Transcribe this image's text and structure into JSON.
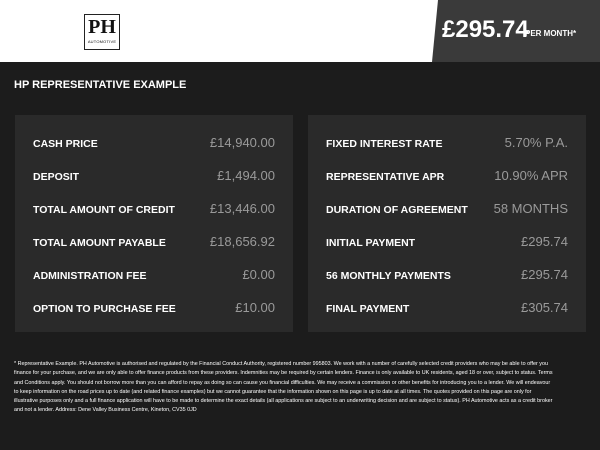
{
  "header": {
    "logo_mark": "PH",
    "logo_text": "AUTOMOTIVE",
    "price": "£295.74",
    "price_suffix": "PER MONTH*"
  },
  "section_title": "HP REPRESENTATIVE EXAMPLE",
  "left_table": {
    "rows": [
      [
        "CASH PRICE",
        "£14,940.00"
      ],
      [
        "DEPOSIT",
        "£1,494.00"
      ],
      [
        "TOTAL AMOUNT OF CREDIT",
        "£13,446.00"
      ],
      [
        "TOTAL AMOUNT PAYABLE",
        "£18,656.92"
      ],
      [
        "ADMINISTRATION FEE",
        "£0.00"
      ],
      [
        "OPTION TO PURCHASE FEE",
        "£10.00"
      ]
    ]
  },
  "right_table": {
    "rows": [
      [
        "FIXED INTEREST RATE",
        "5.70% P.A."
      ],
      [
        "REPRESENTATIVE APR",
        "10.90% APR"
      ],
      [
        "DURATION OF AGREEMENT",
        "58 MONTHS"
      ],
      [
        "INITIAL PAYMENT",
        "£295.74"
      ],
      [
        "56 MONTHLY PAYMENTS",
        "£295.74"
      ],
      [
        "FINAL PAYMENT",
        "£305.74"
      ]
    ]
  },
  "footnote": "* Representative Example. PH Automotive is authorised and regulated by the Financial Conduct Authority, registered number 995803. We work with a number of carefully selected credit providers who may be able to offer you finance for your purchase, and we are only able to offer finance products from these providers. Indemnities may be required by certain lenders. Finance is only available to UK residents, aged 18 or over, subject to status. Terms and Conditions apply. You should not borrow more than you can afford to repay as doing so can cause you financial difficulties. We may receive a commission or other benefits for introducing you to a lender. We will endeavour to keep information on the road prices up to date (and related finance examples) but we cannot guarantee that the information shown on this page is up to date at all times. The quotes provided on this page are only for illustrative purposes only and a full finance application will have to be made to determine the exact details (all applications are subject to an underwriting decision and are subject to status). PH Automotive acts as a credit broker and not a lender. Address: Dene Valley Business Centre, Kineton, CV35 0JD"
}
